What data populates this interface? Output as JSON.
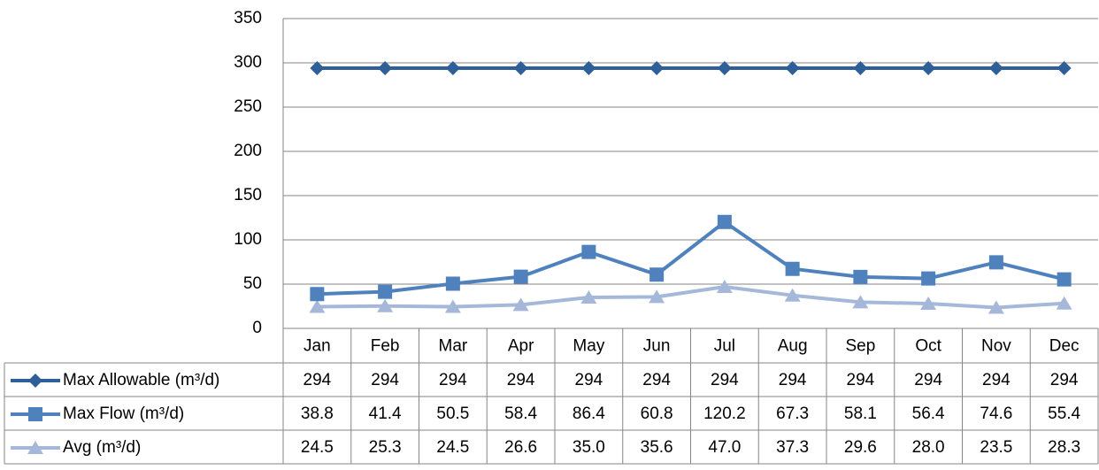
{
  "chart_data": {
    "type": "line",
    "categories": [
      "Jan",
      "Feb",
      "Mar",
      "Apr",
      "May",
      "Jun",
      "Jul",
      "Aug",
      "Sep",
      "Oct",
      "Nov",
      "Dec"
    ],
    "series": [
      {
        "name": "Max Allowable (m³/d)",
        "color": "#2f5f98",
        "marker": "diamond",
        "values": [
          294,
          294,
          294,
          294,
          294,
          294,
          294,
          294,
          294,
          294,
          294,
          294
        ]
      },
      {
        "name": "Max Flow (m³/d)",
        "color": "#4f81bd",
        "marker": "square",
        "values": [
          38.8,
          41.4,
          50.5,
          58.4,
          86.4,
          60.8,
          120.2,
          67.3,
          58.1,
          56.4,
          74.6,
          55.4
        ]
      },
      {
        "name": "Avg (m³/d)",
        "color": "#a5b8d9",
        "marker": "triangle",
        "values": [
          24.5,
          25.3,
          24.5,
          26.6,
          35,
          35.6,
          47,
          37.3,
          29.6,
          28,
          23.5,
          28.3
        ],
        "value_labels": [
          "24.5",
          "25.3",
          "24.5",
          "26.6",
          "35.0",
          "35.6",
          "47.0",
          "37.3",
          "29.6",
          "28.0",
          "23.5",
          "28.3"
        ]
      }
    ],
    "ylim": [
      0,
      350
    ],
    "yticks": [
      0,
      50,
      100,
      150,
      200,
      250,
      300,
      350
    ],
    "grid": true,
    "data_table": true
  }
}
